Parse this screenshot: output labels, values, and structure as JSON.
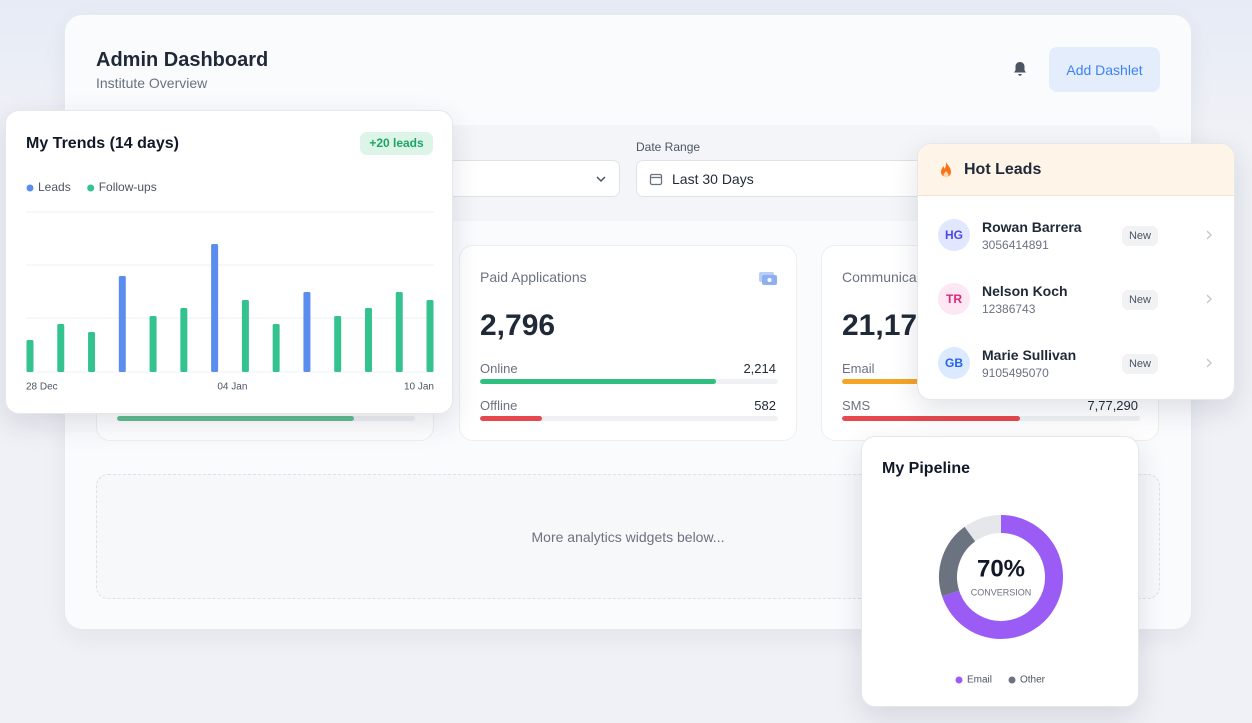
{
  "header": {
    "title": "Admin Dashboard",
    "subtitle": "Institute Overview",
    "button": "Add Dashlet"
  },
  "filters": {
    "date_range_label": "Date Range",
    "date_range_value": "Last 30 Days"
  },
  "stats": [
    {
      "title": "Paid Applications",
      "total": "2,796",
      "rows": [
        {
          "label": "Online",
          "value": "2,214"
        },
        {
          "label": "Offline",
          "value": "582"
        }
      ]
    },
    {
      "title": "Communica",
      "total": "21,17,",
      "rows": [
        {
          "label": "Email"
        },
        {
          "label": "SMS",
          "value": "7,77,290"
        }
      ]
    }
  ],
  "placeholder": "More analytics widgets below...",
  "hot_leads": {
    "title": "Hot Leads",
    "leads": [
      {
        "initials": "HG",
        "name": "Rowan Barrera",
        "phone": "3056414891",
        "status": "New"
      },
      {
        "initials": "TR",
        "name": "Nelson Koch",
        "phone": "12386743",
        "status": "New"
      },
      {
        "initials": "GB",
        "name": "Marie Sullivan",
        "phone": "9105495070",
        "status": "New"
      }
    ]
  },
  "chart_data": [
    {
      "type": "bar",
      "title": "My Trends (14 days)",
      "badge": "+20 leads",
      "categories": [
        "28 Dec",
        null,
        null,
        null,
        null,
        null,
        null,
        "04 Jan",
        null,
        null,
        null,
        null,
        null,
        "10 Jan"
      ],
      "series": [
        {
          "name": "Leads",
          "color": "#5b8def",
          "values": [
            null,
            null,
            null,
            12,
            null,
            null,
            16,
            null,
            null,
            10,
            null,
            null,
            null,
            null
          ]
        },
        {
          "name": "Follow-ups",
          "color": "#34c38f",
          "values": [
            4,
            6,
            5,
            null,
            7,
            8,
            null,
            9,
            6,
            null,
            7,
            8,
            10,
            9
          ]
        }
      ],
      "ylim": [
        0,
        20
      ]
    },
    {
      "type": "donut",
      "title": "My Pipeline",
      "categories": [
        "Email",
        "Other"
      ],
      "values": [
        70,
        20
      ],
      "colors": [
        "#9b5cf6",
        "#6b7280"
      ],
      "value_labels": [
        "70%",
        null
      ],
      "caption": "CONVERSION"
    }
  ]
}
